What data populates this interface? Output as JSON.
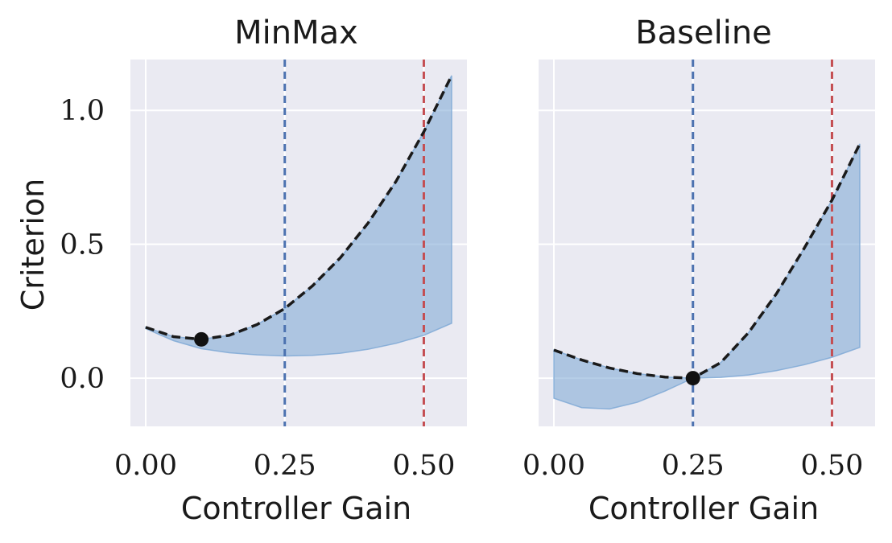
{
  "figure": {
    "ylabel": "Criterion"
  },
  "chart_data": [
    {
      "type": "line",
      "title": "MinMax",
      "xlabel": "Controller Gain",
      "ylabel": "Criterion",
      "xlim": [
        -0.0275,
        0.5775
      ],
      "ylim": [
        -0.18,
        1.19
      ],
      "xticks": [
        0.0,
        0.25,
        0.5
      ],
      "xtick_labels": [
        "0.00",
        "0.25",
        "0.50"
      ],
      "yticks": [
        0.0,
        0.5,
        1.0
      ],
      "ytick_labels": [
        "0.0",
        "0.5",
        "1.0"
      ],
      "grid": true,
      "series": [
        {
          "style": "dashed",
          "color": "#1a1a1a",
          "x": [
            0.0,
            0.05,
            0.1,
            0.15,
            0.2,
            0.25,
            0.3,
            0.35,
            0.4,
            0.45,
            0.5,
            0.55
          ],
          "y": [
            0.19,
            0.155,
            0.145,
            0.16,
            0.2,
            0.26,
            0.345,
            0.45,
            0.58,
            0.735,
            0.92,
            1.13
          ]
        }
      ],
      "band": {
        "color": "#7aa6d4",
        "x": [
          0.0,
          0.05,
          0.1,
          0.15,
          0.2,
          0.25,
          0.3,
          0.35,
          0.4,
          0.45,
          0.5,
          0.55
        ],
        "lower": [
          0.185,
          0.14,
          0.11,
          0.095,
          0.087,
          0.083,
          0.085,
          0.093,
          0.108,
          0.13,
          0.16,
          0.205
        ],
        "upper": [
          0.19,
          0.155,
          0.145,
          0.16,
          0.2,
          0.26,
          0.345,
          0.45,
          0.58,
          0.735,
          0.92,
          1.13
        ]
      },
      "marker": {
        "x": 0.1,
        "y": 0.145,
        "color": "#111111"
      },
      "vlines": [
        {
          "x": 0.25,
          "color": "#4c72b0",
          "style": "dashed"
        },
        {
          "x": 0.5,
          "color": "#c44e52",
          "style": "dashed"
        }
      ]
    },
    {
      "type": "line",
      "title": "Baseline",
      "xlabel": "Controller Gain",
      "xlim": [
        -0.0275,
        0.5775
      ],
      "ylim": [
        -0.18,
        1.19
      ],
      "xticks": [
        0.0,
        0.25,
        0.5
      ],
      "xtick_labels": [
        "0.00",
        "0.25",
        "0.50"
      ],
      "yticks": [
        0.0,
        0.5,
        1.0
      ],
      "grid": true,
      "series": [
        {
          "style": "dashed",
          "color": "#1a1a1a",
          "x": [
            0.0,
            0.05,
            0.1,
            0.15,
            0.2,
            0.25,
            0.3,
            0.35,
            0.4,
            0.45,
            0.5,
            0.55
          ],
          "y": [
            0.105,
            0.068,
            0.038,
            0.017,
            0.004,
            0.0,
            0.058,
            0.17,
            0.315,
            0.485,
            0.665,
            0.875
          ]
        }
      ],
      "band": {
        "color": "#7aa6d4",
        "x": [
          0.0,
          0.05,
          0.1,
          0.15,
          0.2,
          0.25,
          0.3,
          0.35,
          0.4,
          0.45,
          0.5,
          0.55
        ],
        "lower": [
          -0.075,
          -0.11,
          -0.115,
          -0.09,
          -0.048,
          0.0,
          0.003,
          0.012,
          0.028,
          0.05,
          0.078,
          0.115
        ],
        "upper": [
          0.105,
          0.068,
          0.038,
          0.017,
          0.004,
          0.0,
          0.058,
          0.17,
          0.315,
          0.485,
          0.665,
          0.875
        ]
      },
      "marker": {
        "x": 0.25,
        "y": 0.0,
        "color": "#111111"
      },
      "vlines": [
        {
          "x": 0.25,
          "color": "#4c72b0",
          "style": "dashed"
        },
        {
          "x": 0.5,
          "color": "#c44e52",
          "style": "dashed"
        }
      ]
    }
  ]
}
